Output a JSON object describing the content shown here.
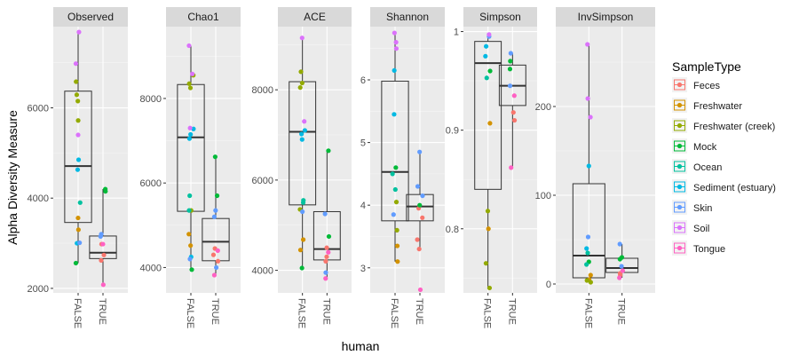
{
  "chart_data": {
    "type": "box",
    "ylabel": "Alpha Diversity Measure",
    "xlabel": "human",
    "categories": [
      "FALSE",
      "TRUE"
    ],
    "legend": {
      "title": "SampleType",
      "placement": "right",
      "items": [
        {
          "name": "Feces",
          "color": "#F8766D"
        },
        {
          "name": "Freshwater",
          "color": "#D39200"
        },
        {
          "name": "Freshwater (creek)",
          "color": "#93AA00"
        },
        {
          "name": "Mock",
          "color": "#00BA38"
        },
        {
          "name": "Ocean",
          "color": "#00C19F"
        },
        {
          "name": "Sediment (estuary)",
          "color": "#00B9E3"
        },
        {
          "name": "Skin",
          "color": "#619CFF"
        },
        {
          "name": "Soil",
          "color": "#DB72FB"
        },
        {
          "name": "Tongue",
          "color": "#FF61C3"
        }
      ]
    },
    "panels": [
      {
        "title": "Observed",
        "ylim": [
          1900,
          7800
        ],
        "yticks": [
          2000,
          4000,
          6000
        ],
        "boxes": {
          "FALSE": {
            "min": 2560,
            "q1": 3460,
            "median": 4710,
            "q3": 6370,
            "max": 7680
          },
          "TRUE": {
            "min": 2080,
            "q1": 2660,
            "median": 2790,
            "q3": 3160,
            "max": 4200
          }
        },
        "points": {
          "FALSE": [
            {
              "t": "Freshwater",
              "v": 3560
            },
            {
              "t": "Freshwater",
              "v": 3300
            },
            {
              "t": "Freshwater (creek)",
              "v": 6580
            },
            {
              "t": "Freshwater (creek)",
              "v": 6290
            },
            {
              "t": "Freshwater (creek)",
              "v": 6150
            },
            {
              "t": "Freshwater (creek)",
              "v": 5720
            },
            {
              "t": "Mock",
              "v": 2560
            },
            {
              "t": "Ocean",
              "v": 3900
            },
            {
              "t": "Sediment (estuary)",
              "v": 4850
            },
            {
              "t": "Sediment (estuary)",
              "v": 4630
            },
            {
              "t": "Sediment (estuary)",
              "v": 3000
            },
            {
              "t": "Skin",
              "v": 3010
            },
            {
              "t": "Soil",
              "v": 7680
            },
            {
              "t": "Soil",
              "v": 6980
            },
            {
              "t": "Soil",
              "v": 5400
            }
          ],
          "TRUE": [
            {
              "t": "Feces",
              "v": 2980
            },
            {
              "t": "Feces",
              "v": 2740
            },
            {
              "t": "Feces",
              "v": 2620
            },
            {
              "t": "Tongue",
              "v": 2080
            },
            {
              "t": "Tongue",
              "v": 2980
            },
            {
              "t": "Skin",
              "v": 3200
            },
            {
              "t": "Skin",
              "v": 3150
            },
            {
              "t": "Mock",
              "v": 4200
            },
            {
              "t": "Mock",
              "v": 4150
            }
          ]
        }
      },
      {
        "title": "Chao1",
        "ylim": [
          3400,
          9700
        ],
        "yticks": [
          4000,
          6000,
          8000
        ],
        "boxes": {
          "FALSE": {
            "min": 3950,
            "q1": 5330,
            "median": 7080,
            "q3": 8330,
            "max": 9250
          },
          "TRUE": {
            "min": 3820,
            "q1": 4160,
            "median": 4610,
            "q3": 5160,
            "max": 6620
          }
        },
        "points": {
          "FALSE": [
            {
              "t": "Freshwater",
              "v": 4790
            },
            {
              "t": "Freshwater",
              "v": 4520
            },
            {
              "t": "Freshwater (creek)",
              "v": 8550
            },
            {
              "t": "Freshwater (creek)",
              "v": 8350
            },
            {
              "t": "Freshwater (creek)",
              "v": 8250
            },
            {
              "t": "Freshwater (creek)",
              "v": 5350
            },
            {
              "t": "Mock",
              "v": 3950
            },
            {
              "t": "Ocean",
              "v": 5700
            },
            {
              "t": "Ocean",
              "v": 5350
            },
            {
              "t": "Sediment (estuary)",
              "v": 7280
            },
            {
              "t": "Sediment (estuary)",
              "v": 7150
            },
            {
              "t": "Sediment (estuary)",
              "v": 7050
            },
            {
              "t": "Sediment (estuary)",
              "v": 4250
            },
            {
              "t": "Skin",
              "v": 4200
            },
            {
              "t": "Soil",
              "v": 9250
            },
            {
              "t": "Soil",
              "v": 8580
            },
            {
              "t": "Soil",
              "v": 7300
            }
          ],
          "TRUE": [
            {
              "t": "Feces",
              "v": 4450
            },
            {
              "t": "Feces",
              "v": 4300
            },
            {
              "t": "Feces",
              "v": 4150
            },
            {
              "t": "Tongue",
              "v": 3820
            },
            {
              "t": "Tongue",
              "v": 4400
            },
            {
              "t": "Skin",
              "v": 5350
            },
            {
              "t": "Skin",
              "v": 5200
            },
            {
              "t": "Skin",
              "v": 4000
            },
            {
              "t": "Mock",
              "v": 6620
            },
            {
              "t": "Mock",
              "v": 5700
            }
          ]
        }
      },
      {
        "title": "ACE",
        "ylim": [
          3500,
          9400
        ],
        "yticks": [
          4000,
          6000,
          8000
        ],
        "boxes": {
          "FALSE": {
            "min": 4050,
            "q1": 5450,
            "median": 7070,
            "q3": 8180,
            "max": 9150
          },
          "TRUE": {
            "min": 3820,
            "q1": 4230,
            "median": 4470,
            "q3": 5300,
            "max": 6650
          }
        },
        "points": {
          "FALSE": [
            {
              "t": "Freshwater",
              "v": 4680
            },
            {
              "t": "Freshwater",
              "v": 4450
            },
            {
              "t": "Freshwater (creek)",
              "v": 8400
            },
            {
              "t": "Freshwater (creek)",
              "v": 8150
            },
            {
              "t": "Freshwater (creek)",
              "v": 8050
            },
            {
              "t": "Freshwater (creek)",
              "v": 5350
            },
            {
              "t": "Mock",
              "v": 4050
            },
            {
              "t": "Ocean",
              "v": 5550
            },
            {
              "t": "Ocean",
              "v": 5500
            },
            {
              "t": "Sediment (estuary)",
              "v": 7100
            },
            {
              "t": "Sediment (estuary)",
              "v": 7020
            },
            {
              "t": "Sediment (estuary)",
              "v": 6900
            },
            {
              "t": "Skin",
              "v": 5300
            },
            {
              "t": "Soil",
              "v": 9150
            },
            {
              "t": "Soil",
              "v": 7300
            }
          ],
          "TRUE": [
            {
              "t": "Feces",
              "v": 4500
            },
            {
              "t": "Feces",
              "v": 4300
            },
            {
              "t": "Feces",
              "v": 4200
            },
            {
              "t": "Tongue",
              "v": 3820
            },
            {
              "t": "Tongue",
              "v": 4400
            },
            {
              "t": "Skin",
              "v": 5250
            },
            {
              "t": "Skin",
              "v": 3950
            },
            {
              "t": "Mock",
              "v": 6650
            },
            {
              "t": "Mock",
              "v": 4750
            }
          ]
        }
      },
      {
        "title": "Shannon",
        "ylim": [
          2.6,
          6.85
        ],
        "yticks": [
          3,
          4,
          5,
          6
        ],
        "boxes": {
          "FALSE": {
            "min": 3.1,
            "q1": 3.75,
            "median": 4.53,
            "q3": 5.98,
            "max": 6.75
          },
          "TRUE": {
            "min": 3.3,
            "q1": 3.75,
            "median": 3.98,
            "q3": 4.17,
            "max": 4.85
          }
        },
        "points": {
          "FALSE": [
            {
              "t": "Freshwater",
              "v": 3.1
            },
            {
              "t": "Freshwater",
              "v": 3.35
            },
            {
              "t": "Freshwater (creek)",
              "v": 3.6
            },
            {
              "t": "Freshwater (creek)",
              "v": 4.05
            },
            {
              "t": "Mock",
              "v": 4.6
            },
            {
              "t": "Ocean",
              "v": 4.25
            },
            {
              "t": "Ocean",
              "v": 4.5
            },
            {
              "t": "Sediment (estuary)",
              "v": 5.45
            },
            {
              "t": "Sediment (estuary)",
              "v": 6.15
            },
            {
              "t": "Skin",
              "v": 3.85
            },
            {
              "t": "Soil",
              "v": 6.75
            },
            {
              "t": "Soil",
              "v": 6.6
            },
            {
              "t": "Soil",
              "v": 6.5
            }
          ],
          "TRUE": [
            {
              "t": "Feces",
              "v": 3.95
            },
            {
              "t": "Feces",
              "v": 3.8
            },
            {
              "t": "Feces",
              "v": 3.45
            },
            {
              "t": "Feces",
              "v": 3.3
            },
            {
              "t": "Tongue",
              "v": 2.65
            },
            {
              "t": "Skin",
              "v": 4.85
            },
            {
              "t": "Skin",
              "v": 4.3
            },
            {
              "t": "Skin",
              "v": 4.15
            },
            {
              "t": "Mock",
              "v": 4.0
            }
          ]
        }
      },
      {
        "title": "Simpson",
        "ylim": [
          0.735,
          1.005
        ],
        "yticks": [
          0.8,
          0.9,
          1.0
        ],
        "boxes": {
          "FALSE": {
            "min": 0.74,
            "q1": 0.84,
            "median": 0.968,
            "q3": 0.99,
            "max": 0.997
          },
          "TRUE": {
            "min": 0.862,
            "q1": 0.925,
            "median": 0.945,
            "q3": 0.966,
            "max": 0.978
          }
        },
        "points": {
          "FALSE": [
            {
              "t": "Freshwater",
              "v": 0.907
            },
            {
              "t": "Freshwater",
              "v": 0.8
            },
            {
              "t": "Freshwater (creek)",
              "v": 0.818
            },
            {
              "t": "Freshwater (creek)",
              "v": 0.765
            },
            {
              "t": "Freshwater (creek)",
              "v": 0.74
            },
            {
              "t": "Mock",
              "v": 0.96
            },
            {
              "t": "Ocean",
              "v": 0.953
            },
            {
              "t": "Sediment (estuary)",
              "v": 0.975
            },
            {
              "t": "Sediment (estuary)",
              "v": 0.985
            },
            {
              "t": "Skin",
              "v": 0.995
            },
            {
              "t": "Soil",
              "v": 0.997
            }
          ],
          "TRUE": [
            {
              "t": "Feces",
              "v": 0.918
            },
            {
              "t": "Feces",
              "v": 0.91
            },
            {
              "t": "Tongue",
              "v": 0.862
            },
            {
              "t": "Tongue",
              "v": 0.935
            },
            {
              "t": "Skin",
              "v": 0.978
            },
            {
              "t": "Skin",
              "v": 0.945
            },
            {
              "t": "Mock",
              "v": 0.97
            },
            {
              "t": "Mock",
              "v": 0.962
            }
          ]
        }
      },
      {
        "title": "InvSimpson",
        "ylim": [
          -10,
          290
        ],
        "yticks": [
          0,
          100,
          200
        ],
        "boxes": {
          "FALSE": {
            "min": 2,
            "q1": 7,
            "median": 32,
            "q3": 113,
            "max": 270
          },
          "TRUE": {
            "min": 7,
            "q1": 13,
            "median": 18,
            "q3": 29,
            "max": 45
          }
        },
        "points": {
          "FALSE": [
            {
              "t": "Freshwater",
              "v": 5
            },
            {
              "t": "Freshwater",
              "v": 10
            },
            {
              "t": "Freshwater (creek)",
              "v": 2
            },
            {
              "t": "Freshwater (creek)",
              "v": 4
            },
            {
              "t": "Mock",
              "v": 25
            },
            {
              "t": "Ocean",
              "v": 22
            },
            {
              "t": "Ocean",
              "v": 35
            },
            {
              "t": "Sediment (estuary)",
              "v": 133
            },
            {
              "t": "Sediment (estuary)",
              "v": 40
            },
            {
              "t": "Skin",
              "v": 53
            },
            {
              "t": "Soil",
              "v": 270
            },
            {
              "t": "Soil",
              "v": 209
            },
            {
              "t": "Soil",
              "v": 188
            }
          ],
          "TRUE": [
            {
              "t": "Feces",
              "v": 12
            },
            {
              "t": "Feces",
              "v": 10
            },
            {
              "t": "Tongue",
              "v": 7
            },
            {
              "t": "Tongue",
              "v": 15
            },
            {
              "t": "Skin",
              "v": 45
            },
            {
              "t": "Skin",
              "v": 20
            },
            {
              "t": "Mock",
              "v": 28
            },
            {
              "t": "Mock",
              "v": 30
            }
          ]
        }
      }
    ]
  }
}
